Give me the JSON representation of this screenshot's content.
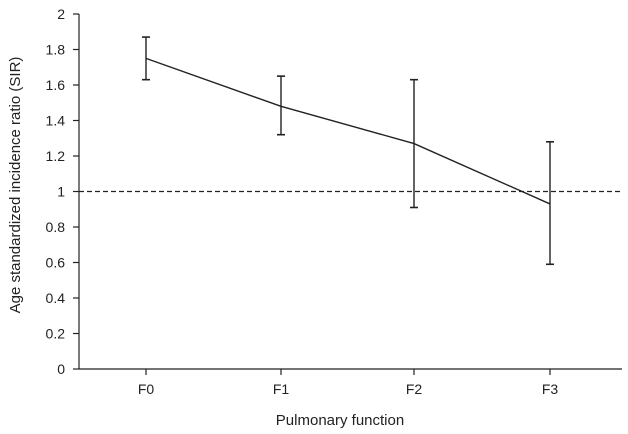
{
  "chart_data": {
    "type": "line",
    "title": "",
    "xlabel": "Pulmonary function",
    "ylabel": "Age standardized incidence ratio (SIR)",
    "categories": [
      "F0",
      "F1",
      "F2",
      "F3"
    ],
    "series": [
      {
        "values": [
          1.75,
          1.48,
          1.27,
          0.93
        ],
        "error_lower": [
          1.63,
          1.32,
          0.91,
          0.59
        ],
        "error_upper": [
          1.87,
          1.65,
          1.63,
          1.28
        ]
      }
    ],
    "reference_line": {
      "y": 1,
      "style": "dashed"
    },
    "ylim": [
      0,
      2
    ],
    "yticks": [
      "0",
      "0.2",
      "0.4",
      "0.6",
      "0.8",
      "1",
      "1.2",
      "1.4",
      "1.6",
      "1.8",
      "2"
    ],
    "grid": false,
    "legend": "none",
    "colors": {
      "line": "#222222",
      "axis": "#222222",
      "text": "#222222"
    }
  }
}
